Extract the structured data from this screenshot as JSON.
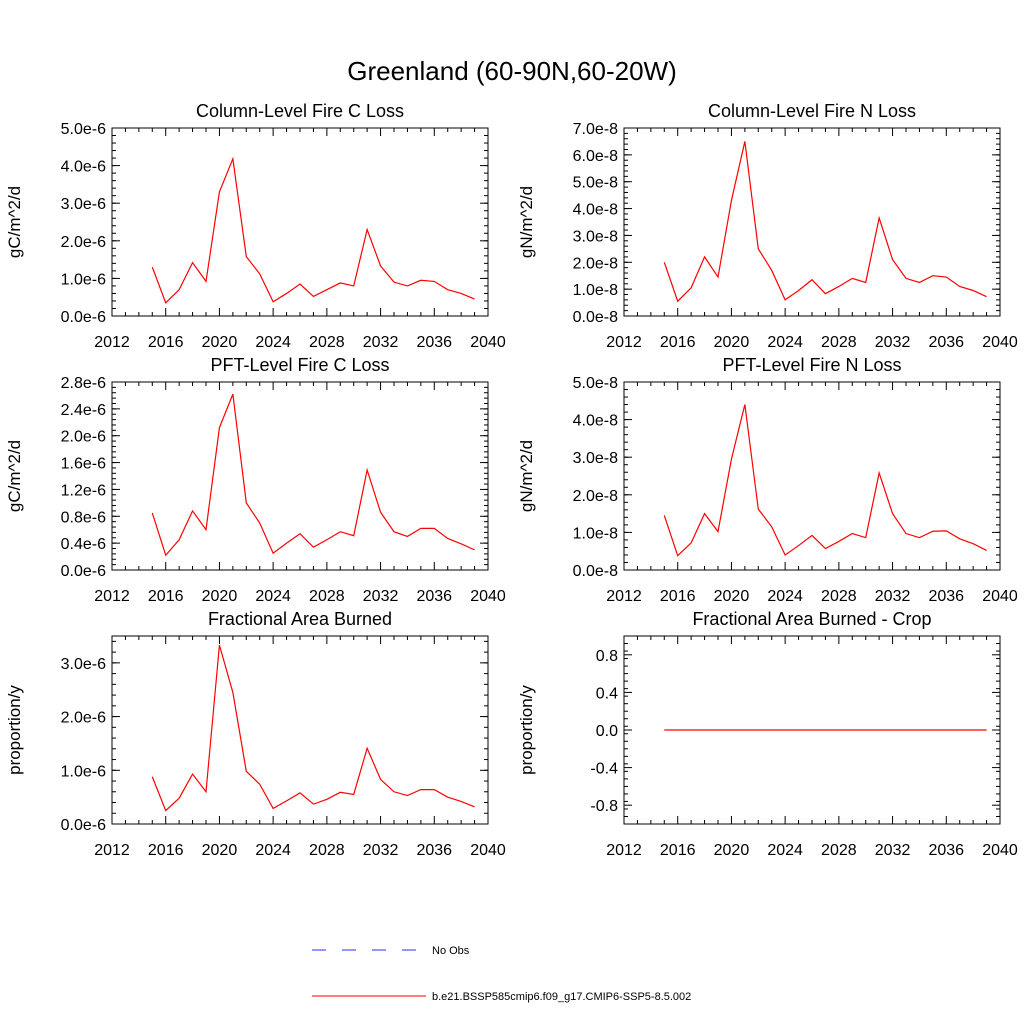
{
  "title": "Greenland (60-90N,60-20W)",
  "colors": {
    "model": "#ff0000",
    "obs": "#2b2bff",
    "axis": "#000000"
  },
  "legend": {
    "obs_label": "No Obs",
    "model_label": "b.e21.BSSP585cmip6.f09_g17.CMIP6-SSP5-8.5.002"
  },
  "chart_data": [
    {
      "type": "line",
      "title": "Column-Level Fire C Loss",
      "ylabel": "gC/m^2/d",
      "xlim": [
        2012,
        2040
      ],
      "xticks": [
        "2012",
        "2016",
        "2020",
        "2024",
        "2028",
        "2032",
        "2036",
        "2040"
      ],
      "ylim": [
        0,
        5e-06
      ],
      "yticks": [
        {
          "v": 0.0,
          "label": "0.0e-6"
        },
        {
          "v": 1e-06,
          "label": "1.0e-6"
        },
        {
          "v": 2e-06,
          "label": "2.0e-6"
        },
        {
          "v": 3e-06,
          "label": "3.0e-6"
        },
        {
          "v": 4e-06,
          "label": "4.0e-6"
        },
        {
          "v": 5e-06,
          "label": "5.0e-6"
        }
      ],
      "x": [
        2015,
        2016,
        2017,
        2018,
        2019,
        2020,
        2021,
        2022,
        2023,
        2024,
        2025,
        2026,
        2027,
        2028,
        2029,
        2030,
        2031,
        2032,
        2033,
        2034,
        2035,
        2036,
        2037,
        2038,
        2039
      ],
      "series": [
        {
          "values": [
            1.3e-06,
            3.5e-07,
            7e-07,
            1.42e-06,
            9.2e-07,
            3.3e-06,
            4.18e-06,
            1.58e-06,
            1.12e-06,
            3.8e-07,
            6e-07,
            8.5e-07,
            5.2e-07,
            7e-07,
            8.8e-07,
            8e-07,
            2.3e-06,
            1.33e-06,
            9e-07,
            8e-07,
            9.5e-07,
            9.2e-07,
            7e-07,
            6e-07,
            4.5e-07
          ]
        }
      ]
    },
    {
      "type": "line",
      "title": "Column-Level Fire N Loss",
      "ylabel": "gN/m^2/d",
      "xlim": [
        2012,
        2040
      ],
      "xticks": [
        "2012",
        "2016",
        "2020",
        "2024",
        "2028",
        "2032",
        "2036",
        "2040"
      ],
      "ylim": [
        0,
        7e-08
      ],
      "yticks": [
        {
          "v": 0.0,
          "label": "0.0e-8"
        },
        {
          "v": 1e-08,
          "label": "1.0e-8"
        },
        {
          "v": 2e-08,
          "label": "2.0e-8"
        },
        {
          "v": 3e-08,
          "label": "3.0e-8"
        },
        {
          "v": 4e-08,
          "label": "4.0e-8"
        },
        {
          "v": 5e-08,
          "label": "5.0e-8"
        },
        {
          "v": 6e-08,
          "label": "6.0e-8"
        },
        {
          "v": 7e-08,
          "label": "7.0e-8"
        }
      ],
      "x": [
        2015,
        2016,
        2017,
        2018,
        2019,
        2020,
        2021,
        2022,
        2023,
        2024,
        2025,
        2026,
        2027,
        2028,
        2029,
        2030,
        2031,
        2032,
        2033,
        2034,
        2035,
        2036,
        2037,
        2038,
        2039
      ],
      "series": [
        {
          "values": [
            2e-08,
            5.5e-09,
            1.05e-08,
            2.2e-08,
            1.45e-08,
            4.3e-08,
            6.5e-08,
            2.5e-08,
            1.7e-08,
            6e-09,
            9.5e-09,
            1.35e-08,
            8.3e-09,
            1.1e-08,
            1.4e-08,
            1.25e-08,
            3.65e-08,
            2.1e-08,
            1.4e-08,
            1.25e-08,
            1.5e-08,
            1.45e-08,
            1.1e-08,
            9.5e-09,
            7.2e-09
          ]
        }
      ]
    },
    {
      "type": "line",
      "title": "PFT-Level Fire C Loss",
      "ylabel": "gC/m^2/d",
      "xlim": [
        2012,
        2040
      ],
      "xticks": [
        "2012",
        "2016",
        "2020",
        "2024",
        "2028",
        "2032",
        "2036",
        "2040"
      ],
      "ylim": [
        0,
        2.8e-06
      ],
      "yticks": [
        {
          "v": 0.0,
          "label": "0.0e-6"
        },
        {
          "v": 4e-07,
          "label": "0.4e-6"
        },
        {
          "v": 8e-07,
          "label": "0.8e-6"
        },
        {
          "v": 1.2e-06,
          "label": "1.2e-6"
        },
        {
          "v": 1.6e-06,
          "label": "1.6e-6"
        },
        {
          "v": 2e-06,
          "label": "2.0e-6"
        },
        {
          "v": 2.4e-06,
          "label": "2.4e-6"
        },
        {
          "v": 2.8e-06,
          "label": "2.8e-6"
        }
      ],
      "x": [
        2015,
        2016,
        2017,
        2018,
        2019,
        2020,
        2021,
        2022,
        2023,
        2024,
        2025,
        2026,
        2027,
        2028,
        2029,
        2030,
        2031,
        2032,
        2033,
        2034,
        2035,
        2036,
        2037,
        2038,
        2039
      ],
      "series": [
        {
          "values": [
            8.5e-07,
            2.2e-07,
            4.5e-07,
            8.8e-07,
            6e-07,
            2.12e-06,
            2.62e-06,
            1e-06,
            7e-07,
            2.5e-07,
            4e-07,
            5.4e-07,
            3.4e-07,
            4.5e-07,
            5.7e-07,
            5.1e-07,
            1.49e-06,
            8.6e-07,
            5.7e-07,
            5e-07,
            6.2e-07,
            6.2e-07,
            4.7e-07,
            3.9e-07,
            3e-07
          ]
        }
      ]
    },
    {
      "type": "line",
      "title": "PFT-Level Fire N Loss",
      "ylabel": "gN/m^2/d",
      "xlim": [
        2012,
        2040
      ],
      "xticks": [
        "2012",
        "2016",
        "2020",
        "2024",
        "2028",
        "2032",
        "2036",
        "2040"
      ],
      "ylim": [
        0,
        5e-08
      ],
      "yticks": [
        {
          "v": 0.0,
          "label": "0.0e-8"
        },
        {
          "v": 1e-08,
          "label": "1.0e-8"
        },
        {
          "v": 2e-08,
          "label": "2.0e-8"
        },
        {
          "v": 3e-08,
          "label": "3.0e-8"
        },
        {
          "v": 4e-08,
          "label": "4.0e-8"
        },
        {
          "v": 5e-08,
          "label": "5.0e-8"
        }
      ],
      "x": [
        2015,
        2016,
        2017,
        2018,
        2019,
        2020,
        2021,
        2022,
        2023,
        2024,
        2025,
        2026,
        2027,
        2028,
        2029,
        2030,
        2031,
        2032,
        2033,
        2034,
        2035,
        2036,
        2037,
        2038,
        2039
      ],
      "series": [
        {
          "values": [
            1.45e-08,
            3.8e-09,
            7.2e-09,
            1.5e-08,
            1.02e-08,
            2.95e-08,
            4.4e-08,
            1.62e-08,
            1.15e-08,
            4e-09,
            6.5e-09,
            9.2e-09,
            5.7e-09,
            7.6e-09,
            9.7e-09,
            8.6e-09,
            2.58e-08,
            1.5e-08,
            9.7e-09,
            8.6e-09,
            1.03e-08,
            1.04e-08,
            8.3e-09,
            7e-09,
            5.2e-09
          ]
        }
      ]
    },
    {
      "type": "line",
      "title": "Fractional Area Burned",
      "ylabel": "proportion/y",
      "xlim": [
        2012,
        2040
      ],
      "xticks": [
        "2012",
        "2016",
        "2020",
        "2024",
        "2028",
        "2032",
        "2036",
        "2040"
      ],
      "ylim": [
        0,
        3.5e-06
      ],
      "yticks": [
        {
          "v": 0.0,
          "label": "0.0e-6"
        },
        {
          "v": 1e-06,
          "label": "1.0e-6"
        },
        {
          "v": 2e-06,
          "label": "2.0e-6"
        },
        {
          "v": 3e-06,
          "label": "3.0e-6"
        }
      ],
      "x": [
        2015,
        2016,
        2017,
        2018,
        2019,
        2020,
        2021,
        2022,
        2023,
        2024,
        2025,
        2026,
        2027,
        2028,
        2029,
        2030,
        2031,
        2032,
        2033,
        2034,
        2035,
        2036,
        2037,
        2038,
        2039
      ],
      "series": [
        {
          "values": [
            8.8e-07,
            2.5e-07,
            4.8e-07,
            9.3e-07,
            6e-07,
            3.33e-06,
            2.45e-06,
            9.8e-07,
            7.4e-07,
            2.9e-07,
            4.3e-07,
            5.8e-07,
            3.7e-07,
            4.6e-07,
            5.9e-07,
            5.5e-07,
            1.41e-06,
            8.3e-07,
            6e-07,
            5.3e-07,
            6.4e-07,
            6.4e-07,
            5e-07,
            4.2e-07,
            3.2e-07
          ]
        }
      ]
    },
    {
      "type": "line",
      "title": "Fractional Area Burned - Crop",
      "ylabel": "proportion/y",
      "xlim": [
        2012,
        2040
      ],
      "xticks": [
        "2012",
        "2016",
        "2020",
        "2024",
        "2028",
        "2032",
        "2036",
        "2040"
      ],
      "ylim": [
        -1.0,
        1.0
      ],
      "yticks": [
        {
          "v": -0.8,
          "label": "-0.8"
        },
        {
          "v": -0.4,
          "label": "-0.4"
        },
        {
          "v": 0.0,
          "label": "0.0"
        },
        {
          "v": 0.4,
          "label": "0.4"
        },
        {
          "v": 0.8,
          "label": "0.8"
        }
      ],
      "x": [
        2015,
        2016,
        2017,
        2018,
        2019,
        2020,
        2021,
        2022,
        2023,
        2024,
        2025,
        2026,
        2027,
        2028,
        2029,
        2030,
        2031,
        2032,
        2033,
        2034,
        2035,
        2036,
        2037,
        2038,
        2039
      ],
      "series": [
        {
          "values": [
            0,
            0,
            0,
            0,
            0,
            0,
            0,
            0,
            0,
            0,
            0,
            0,
            0,
            0,
            0,
            0,
            0,
            0,
            0,
            0,
            0,
            0,
            0,
            0,
            0
          ]
        }
      ]
    }
  ]
}
